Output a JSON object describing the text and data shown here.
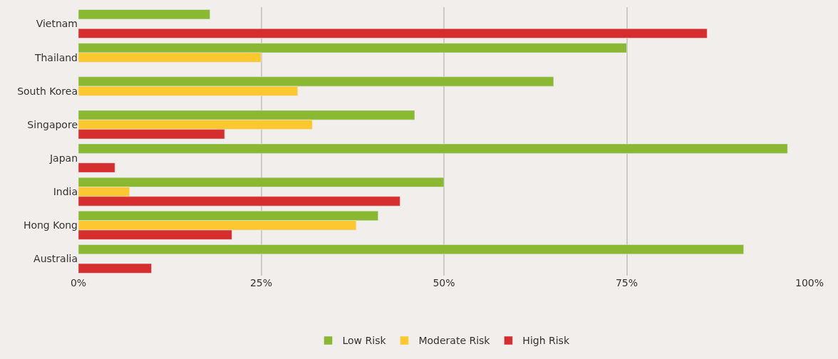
{
  "chart_data": {
    "type": "bar",
    "orientation": "horizontal",
    "categories": [
      "Vietnam",
      "Thailand",
      "South Korea",
      "Singapore",
      "Japan",
      "India",
      "Hong Kong",
      "Australia"
    ],
    "series": [
      {
        "name": "Low Risk",
        "color": "#8ab833",
        "values": [
          18,
          75,
          65,
          46,
          97,
          50,
          41,
          91
        ]
      },
      {
        "name": "Moderate Risk",
        "color": "#fdc82f",
        "values": [
          null,
          25,
          30,
          32,
          null,
          7,
          38,
          null
        ]
      },
      {
        "name": "High Risk",
        "color": "#d62e2e",
        "values": [
          86,
          null,
          null,
          20,
          5,
          44,
          21,
          10
        ]
      }
    ],
    "xlim": [
      0,
      100
    ],
    "xticks": [
      {
        "value": 0,
        "label": "0%"
      },
      {
        "value": 25,
        "label": "25%"
      },
      {
        "value": 50,
        "label": "50%"
      },
      {
        "value": 75,
        "label": "75%"
      },
      {
        "value": 100,
        "label": "100%"
      }
    ],
    "grid": "x",
    "legend": "bottom"
  }
}
